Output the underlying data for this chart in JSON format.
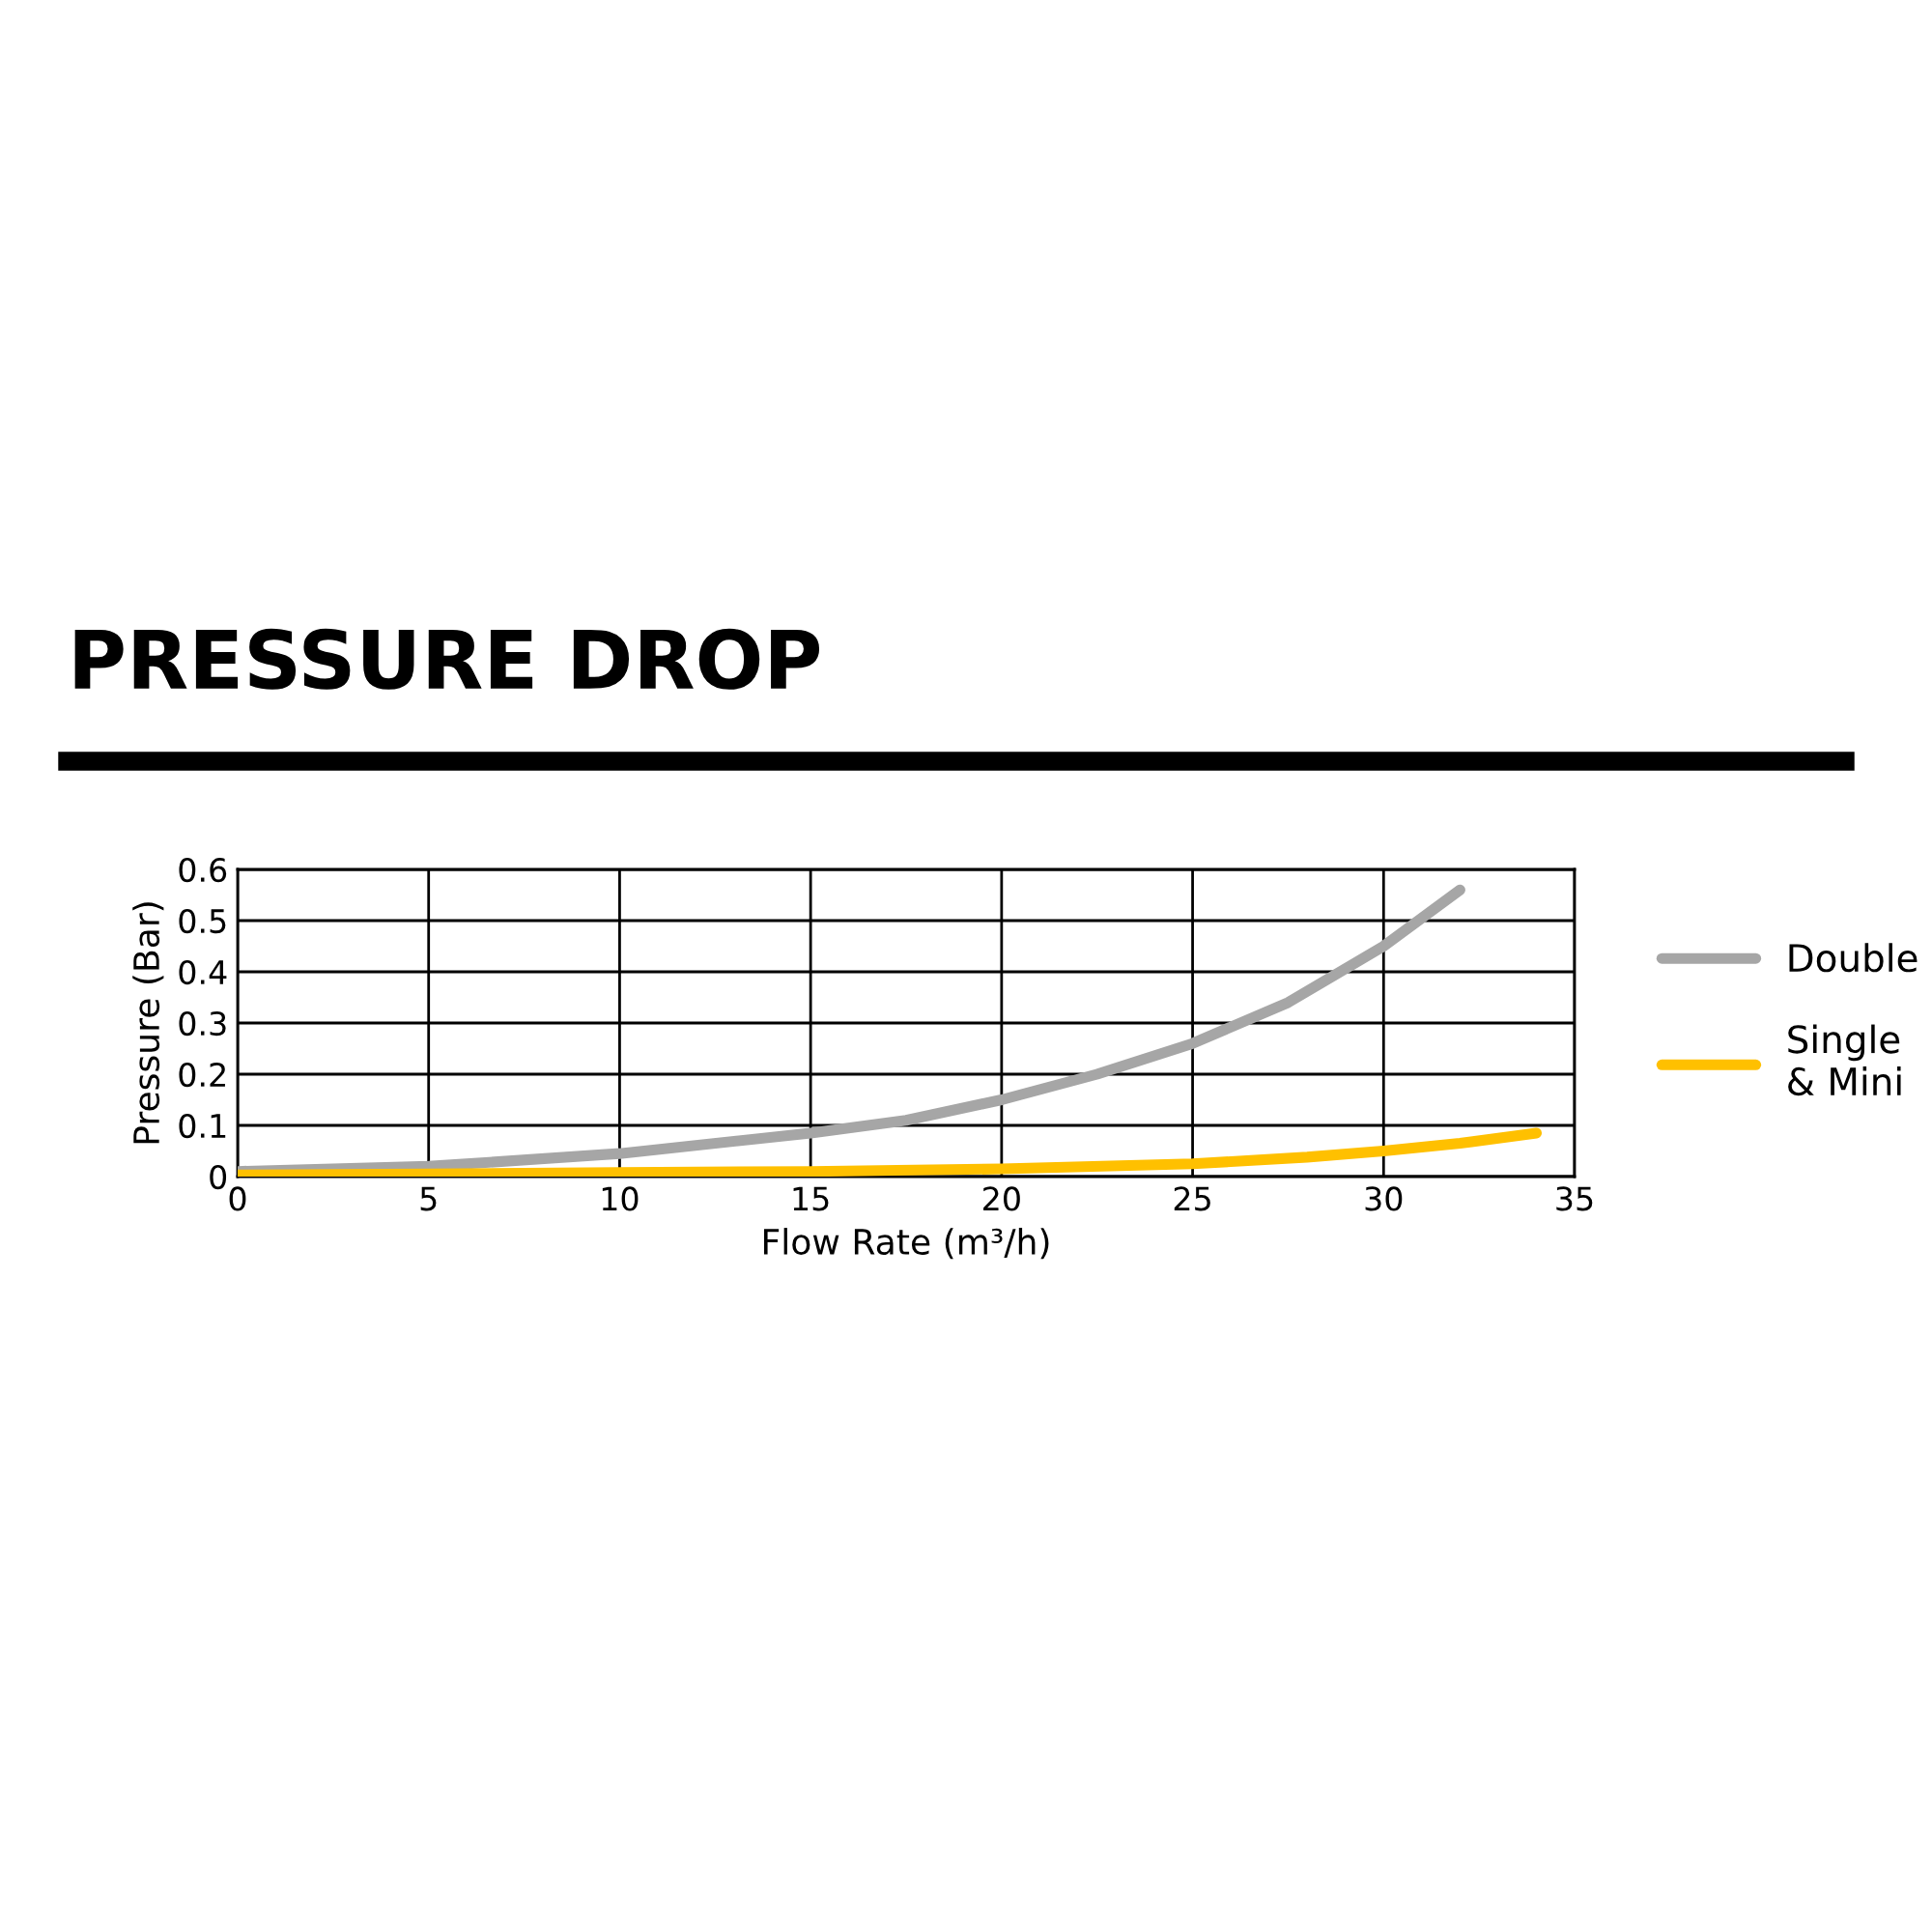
{
  "chart_data": {
    "type": "line",
    "title": "PRESSURE DROP",
    "xlabel": "Flow Rate (m³/h)",
    "ylabel": "Pressure (Bar)",
    "xlim": [
      0,
      35
    ],
    "xticks": [
      0,
      5,
      10,
      15,
      20,
      25,
      30,
      35
    ],
    "ylim": [
      0,
      0.6
    ],
    "yticks": [
      0,
      0.1,
      0.2,
      0.3,
      0.4,
      0.5,
      0.6
    ],
    "grid": true,
    "legend": "right",
    "marker": "none",
    "line_style": "solid",
    "series": [
      {
        "name": "Double",
        "color": "#a6a6a6",
        "x": [
          0,
          5,
          10,
          15,
          17.5,
          20,
          22.5,
          25,
          27.5,
          30,
          32
        ],
        "values": [
          0.01,
          0.02,
          0.045,
          0.085,
          0.11,
          0.15,
          0.2,
          0.26,
          0.34,
          0.45,
          0.56
        ]
      },
      {
        "name": "Single\n& Mini",
        "color": "#ffc000",
        "x": [
          0,
          5,
          10,
          15,
          20,
          25,
          28,
          30,
          32,
          34
        ],
        "values": [
          0.003,
          0.005,
          0.008,
          0.01,
          0.015,
          0.025,
          0.038,
          0.05,
          0.065,
          0.085
        ]
      }
    ]
  }
}
